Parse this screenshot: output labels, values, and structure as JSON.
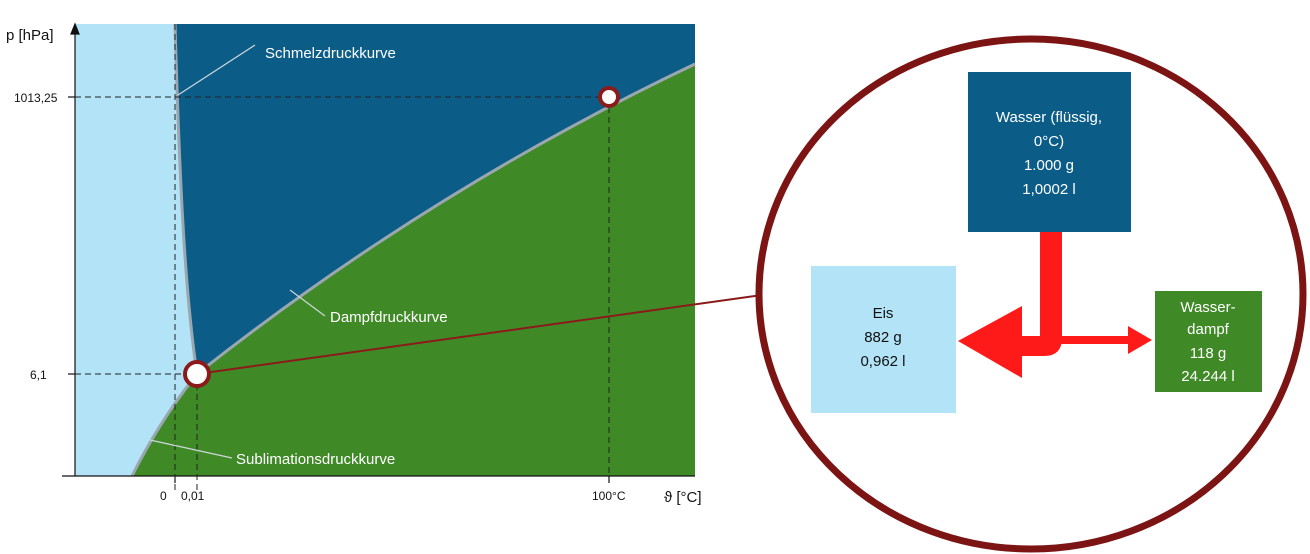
{
  "diagram": {
    "y_axis_label": "p [hPa]",
    "x_axis_label": "ϑ [°C]",
    "y_ticks": [
      "1013,25",
      "6,1"
    ],
    "x_ticks": [
      "0",
      "0,01",
      "100°C"
    ],
    "curves": {
      "melting": "Schmelzdruckkurve",
      "vapor": "Dampfdruckkurve",
      "sublimation": "Sublimationsdruckkurve"
    },
    "colors": {
      "ice": "#b3e3f7",
      "liquid": "#0b5d88",
      "vapor": "#3f8a27",
      "marker": "#8b1a1a",
      "arrow": "#ff1a1a",
      "curve_line": "#9aa7b0"
    }
  },
  "zoom": {
    "water_box": [
      "Wasser (flüssig,",
      "0°C)",
      "1.000 g",
      "1,0002 l"
    ],
    "ice_box": [
      "Eis",
      "882 g",
      "0,962 l"
    ],
    "vapor_box": [
      "Wasser-",
      "dampf",
      "118 g",
      "24.244 l"
    ]
  }
}
